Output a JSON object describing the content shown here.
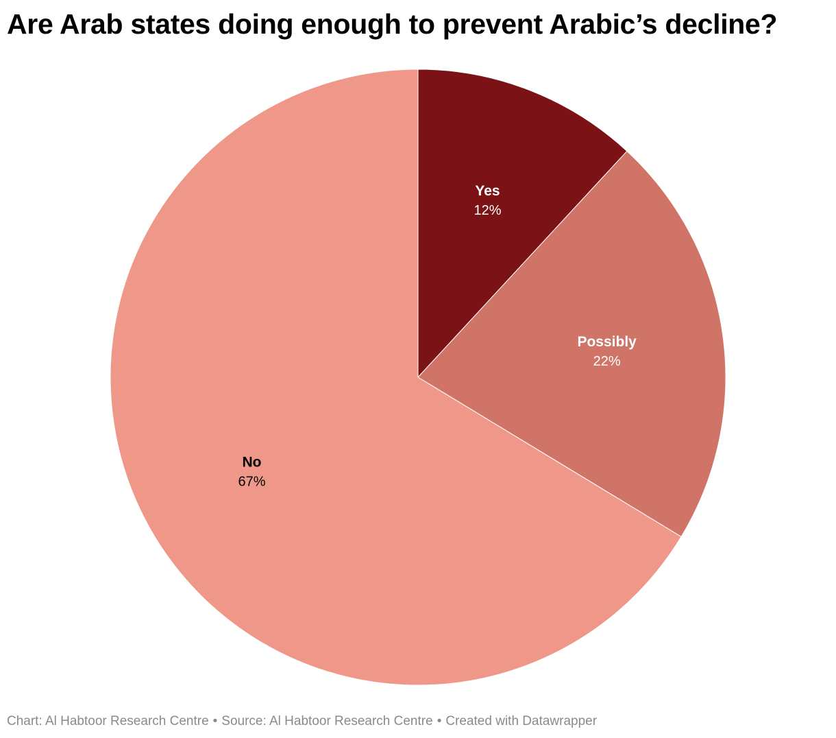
{
  "title": "Are Arab states doing enough to prevent Arabic’s decline?",
  "footer": {
    "chart_credit": "Chart: Al Habtoor Research Centre",
    "source": "Source: Al Habtoor Research Centre",
    "created_with": "Created with Datawrapper",
    "separator": "•"
  },
  "chart_data": {
    "type": "pie",
    "title": "Are Arab states doing enough to prevent Arabic’s decline?",
    "slices": [
      {
        "label": "Yes",
        "value": 12,
        "display": "12%",
        "color": "#7b1216",
        "text_color": "#ffffff"
      },
      {
        "label": "Possibly",
        "value": 22,
        "display": "22%",
        "color": "#cf7466",
        "text_color": "#ffffff"
      },
      {
        "label": "No",
        "value": 67,
        "display": "67%",
        "color": "#ef9889",
        "text_color": "#000000"
      }
    ]
  }
}
